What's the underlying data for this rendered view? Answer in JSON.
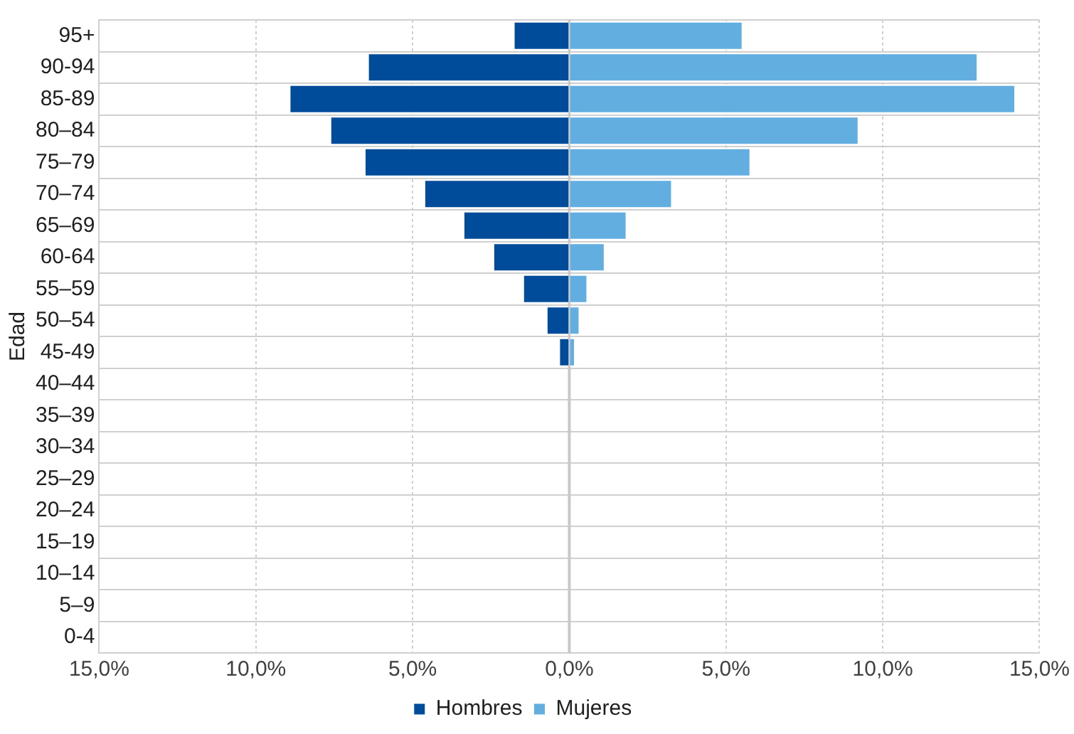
{
  "chart_data": {
    "type": "bar",
    "orientation": "horizontal",
    "stacked": true,
    "ylabel": "Edad",
    "categories": [
      "95+",
      "90-94",
      "85-89",
      "80–84",
      "75–79",
      "70–74",
      "65–69",
      "60-64",
      "55–59",
      "50–54",
      "45-49",
      "40–44",
      "35–39",
      "30–34",
      "25–29",
      "20–24",
      "15–19",
      "10–14",
      "5–9",
      "0-4"
    ],
    "series": [
      {
        "name": "Hombres",
        "color": "#004c9b",
        "values": [
          -1.75,
          -6.4,
          -8.9,
          -7.6,
          -6.5,
          -4.6,
          -3.35,
          -2.4,
          -1.45,
          -0.7,
          -0.3,
          0,
          0,
          0,
          0,
          0,
          0,
          0,
          0,
          0
        ]
      },
      {
        "name": "Mujeres",
        "color": "#62aee0",
        "values": [
          5.5,
          13.0,
          14.2,
          9.2,
          5.75,
          3.25,
          1.8,
          1.1,
          0.55,
          0.3,
          0.15,
          0,
          0,
          0,
          0,
          0,
          0,
          0,
          0,
          0
        ]
      }
    ],
    "xlim": [
      -15,
      15
    ],
    "xticks": [
      {
        "value": -15,
        "label": "15,0%"
      },
      {
        "value": -10,
        "label": "10,0%"
      },
      {
        "value": -5,
        "label": "5,0%"
      },
      {
        "value": 0,
        "label": "0,0%"
      },
      {
        "value": 5,
        "label": "5,0%"
      },
      {
        "value": 10,
        "label": "10,0%"
      },
      {
        "value": 15,
        "label": "15,0%"
      }
    ],
    "grid": true,
    "legend": "bottom"
  }
}
